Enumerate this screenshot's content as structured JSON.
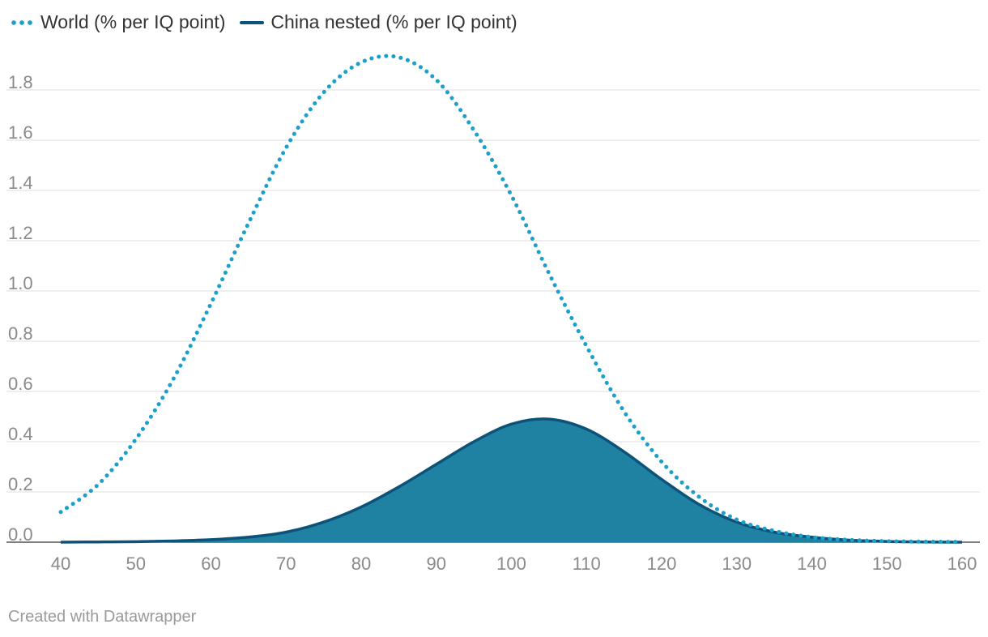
{
  "legend": {
    "world": "World (% per IQ point)",
    "china": "China nested (% per IQ point)"
  },
  "footer": "Created with Datawrapper",
  "colors": {
    "world": "#1aa0c9",
    "china_line": "#0d5278",
    "china_fill": "#1f82a3",
    "grid": "#dedede",
    "tick_label": "#8a8a8a"
  },
  "chart_data": {
    "type": "area",
    "xlim": [
      40,
      160
    ],
    "ylim": [
      0,
      1.9
    ],
    "x_ticks": [
      40,
      50,
      60,
      70,
      80,
      90,
      100,
      110,
      120,
      130,
      140,
      150,
      160
    ],
    "y_ticks": [
      "0.0",
      "0.2",
      "0.4",
      "0.6",
      "0.8",
      "1.0",
      "1.2",
      "1.4",
      "1.6",
      "1.8"
    ],
    "grid": true,
    "legend_position": "top-left",
    "series": [
      {
        "name": "World (% per IQ point)",
        "style": "dotted line",
        "x": [
          40,
          45,
          50,
          55,
          60,
          65,
          70,
          75,
          80,
          85,
          90,
          95,
          100,
          105,
          110,
          115,
          120,
          125,
          130,
          135,
          140,
          145,
          150,
          155,
          160
        ],
        "values": [
          0.12,
          0.23,
          0.41,
          0.65,
          0.95,
          1.27,
          1.57,
          1.79,
          1.91,
          1.93,
          1.84,
          1.64,
          1.38,
          1.07,
          0.78,
          0.52,
          0.32,
          0.18,
          0.09,
          0.045,
          0.02,
          0.009,
          0.004,
          0.002,
          0.001
        ]
      },
      {
        "name": "China nested (% per IQ point)",
        "style": "filled area",
        "x": [
          40,
          45,
          50,
          55,
          60,
          65,
          70,
          75,
          80,
          85,
          90,
          95,
          100,
          105,
          110,
          115,
          120,
          125,
          130,
          135,
          140,
          145,
          150,
          155,
          160
        ],
        "values": [
          0.0,
          0.001,
          0.002,
          0.005,
          0.01,
          0.02,
          0.04,
          0.08,
          0.14,
          0.22,
          0.31,
          0.4,
          0.47,
          0.49,
          0.45,
          0.36,
          0.25,
          0.15,
          0.08,
          0.04,
          0.02,
          0.008,
          0.003,
          0.001,
          0.0
        ]
      }
    ]
  }
}
